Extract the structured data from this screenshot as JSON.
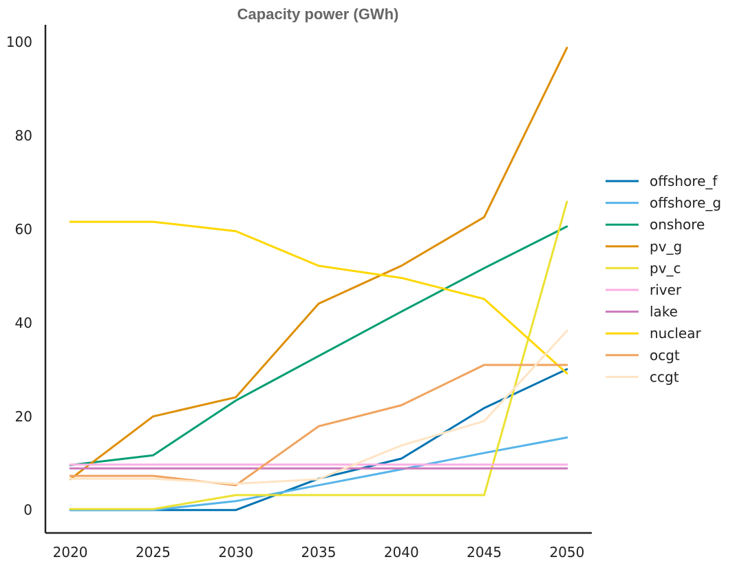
{
  "chart_data": {
    "type": "line",
    "title": "Capacity power (GWh)",
    "xlabel": "",
    "ylabel": "",
    "x": [
      2020,
      2025,
      2030,
      2035,
      2040,
      2045,
      2050
    ],
    "xticks": [
      "2020",
      "2025",
      "2030",
      "2035",
      "2040",
      "2045",
      "2050"
    ],
    "yticks": [
      "0",
      "20",
      "40",
      "60",
      "80",
      "100"
    ],
    "xlim": [
      2018.5,
      2051.5
    ],
    "ylim": [
      -4.9,
      103.7
    ],
    "grid": false,
    "legend_position": "center-right",
    "series": [
      {
        "name": "offshore_f",
        "color": "#0173b2",
        "values": [
          0,
          0,
          0,
          6.7,
          11,
          21.8,
          30.1
        ]
      },
      {
        "name": "offshore_g",
        "color": "#56b4e9",
        "values": [
          0,
          0,
          1.9,
          5.3,
          8.7,
          12.2,
          15.5
        ]
      },
      {
        "name": "onshore",
        "color": "#029e73",
        "values": [
          9.6,
          11.7,
          23.4,
          32.9,
          42.4,
          51.7,
          60.6
        ]
      },
      {
        "name": "pv_g",
        "color": "#de8f05",
        "values": [
          6.6,
          20,
          24.1,
          44.1,
          52.2,
          62.6,
          98.8
        ]
      },
      {
        "name": "pv_c",
        "color": "#ece133",
        "values": [
          0.2,
          0.2,
          3.2,
          3.2,
          3.2,
          3.2,
          65.9
        ]
      },
      {
        "name": "river",
        "color": "#fbafe4",
        "values": [
          9.7,
          9.7,
          9.7,
          9.7,
          9.7,
          9.7,
          9.7
        ]
      },
      {
        "name": "lake",
        "color": "#cc78bc",
        "values": [
          8.9,
          8.9,
          8.9,
          8.9,
          8.9,
          8.9,
          8.9
        ]
      },
      {
        "name": "nuclear",
        "color": "#ffd700",
        "values": [
          61.6,
          61.6,
          59.6,
          52.2,
          49.6,
          45.1,
          29.2
        ]
      },
      {
        "name": "ocgt",
        "color": "#f0a35e",
        "values": [
          7.3,
          7.3,
          5.3,
          17.9,
          22.4,
          31,
          31
        ]
      },
      {
        "name": "ccgt",
        "color": "#ffe4c4",
        "values": [
          6.7,
          6.7,
          5.6,
          6.6,
          13.8,
          19,
          38.3
        ]
      }
    ]
  }
}
